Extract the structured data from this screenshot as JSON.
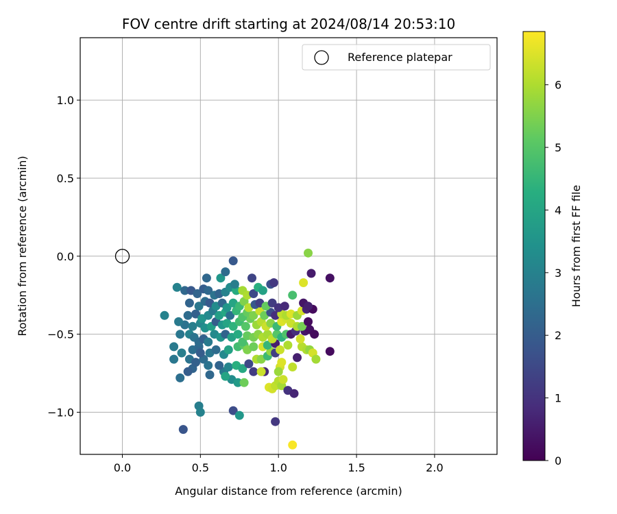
{
  "chart_data": {
    "type": "scatter",
    "title": "FOV centre drift starting at 2024/08/14 20:53:10",
    "xlabel": "Angular distance from reference (arcmin)",
    "ylabel": "Rotation from reference (arcmin)",
    "xlim": [
      -0.27,
      2.4
    ],
    "ylim": [
      -1.27,
      1.4
    ],
    "xticks": [
      0.0,
      0.5,
      1.0,
      1.5,
      2.0
    ],
    "xtick_labels": [
      "0.0",
      "0.5",
      "1.0",
      "1.5",
      "2.0"
    ],
    "yticks": [
      -1.0,
      -0.5,
      0.0,
      0.5,
      1.0
    ],
    "ytick_labels": [
      "−1.0",
      "−0.5",
      "0.0",
      "0.5",
      "1.0"
    ],
    "grid": true,
    "legend": {
      "placement": "top-right",
      "entries": [
        "Reference platepar"
      ]
    },
    "reference_point": {
      "x": 0.0,
      "y": 0.0
    },
    "colorbar": {
      "label": "Hours from first FF file",
      "colormap": "viridis",
      "range": [
        0,
        6.85
      ],
      "ticks": [
        0,
        1,
        2,
        3,
        4,
        5,
        6
      ],
      "tick_labels": [
        "0",
        "1",
        "2",
        "3",
        "4",
        "5",
        "6"
      ]
    },
    "points": [
      [
        1.09,
        -1.21,
        6.8
      ],
      [
        0.39,
        -1.11,
        1.8
      ],
      [
        0.71,
        -0.99,
        1.6
      ],
      [
        0.98,
        -1.06,
        1.1
      ],
      [
        0.75,
        -1.02,
        3.6
      ],
      [
        0.49,
        -0.96,
        2.9
      ],
      [
        0.5,
        -1.0,
        3.0
      ],
      [
        0.37,
        -0.78,
        2.5
      ],
      [
        0.45,
        -0.72,
        2.2
      ],
      [
        0.42,
        -0.74,
        2.0
      ],
      [
        0.56,
        -0.76,
        2.3
      ],
      [
        0.65,
        -0.74,
        2.8
      ],
      [
        0.7,
        -0.79,
        3.3
      ],
      [
        0.74,
        -0.81,
        3.7
      ],
      [
        0.78,
        -0.81,
        5.3
      ],
      [
        0.66,
        -0.77,
        4.0
      ],
      [
        0.84,
        -0.74,
        1.2
      ],
      [
        0.91,
        -0.74,
        0.8
      ],
      [
        0.89,
        -0.74,
        6.3
      ],
      [
        0.94,
        -0.84,
        6.5
      ],
      [
        0.96,
        -0.85,
        6.4
      ],
      [
        0.98,
        -0.83,
        6.2
      ],
      [
        1.0,
        -0.8,
        6.1
      ],
      [
        1.02,
        -0.83,
        5.9
      ],
      [
        1.03,
        -0.79,
        6.3
      ],
      [
        1.06,
        -0.86,
        1.0
      ],
      [
        1.1,
        -0.88,
        0.7
      ],
      [
        1.01,
        -0.71,
        6.4
      ],
      [
        1.0,
        -0.74,
        5.8
      ],
      [
        1.09,
        -0.71,
        6.2
      ],
      [
        1.12,
        -0.65,
        0.6
      ],
      [
        1.02,
        -0.68,
        6.5
      ],
      [
        0.33,
        -0.66,
        2.7
      ],
      [
        0.43,
        -0.66,
        2.6
      ],
      [
        0.47,
        -0.68,
        2.1
      ],
      [
        0.52,
        -0.66,
        2.4
      ],
      [
        0.55,
        -0.7,
        2.6
      ],
      [
        0.62,
        -0.7,
        2.2
      ],
      [
        0.68,
        -0.71,
        3.1
      ],
      [
        0.73,
        -0.7,
        4.3
      ],
      [
        0.77,
        -0.72,
        4.1
      ],
      [
        0.81,
        -0.69,
        1.5
      ],
      [
        0.86,
        -0.66,
        6.0
      ],
      [
        0.89,
        -0.66,
        5.6
      ],
      [
        0.93,
        -0.64,
        4.6
      ],
      [
        0.95,
        -0.61,
        5.7
      ],
      [
        0.98,
        -0.62,
        1.3
      ],
      [
        1.15,
        -0.58,
        6.1
      ],
      [
        1.18,
        -0.6,
        6.0
      ],
      [
        1.2,
        -0.6,
        5.7
      ],
      [
        1.22,
        -0.62,
        6.4
      ],
      [
        1.24,
        -0.66,
        5.9
      ],
      [
        1.33,
        -0.61,
        0.2
      ],
      [
        0.33,
        -0.58,
        2.8
      ],
      [
        0.38,
        -0.62,
        2.9
      ],
      [
        0.45,
        -0.6,
        2.5
      ],
      [
        0.49,
        -0.58,
        2.3
      ],
      [
        0.5,
        -0.62,
        2.0
      ],
      [
        0.56,
        -0.62,
        2.7
      ],
      [
        0.6,
        -0.6,
        2.4
      ],
      [
        0.65,
        -0.63,
        3.2
      ],
      [
        0.68,
        -0.6,
        3.9
      ],
      [
        0.74,
        -0.58,
        4.7
      ],
      [
        0.78,
        -0.57,
        5.1
      ],
      [
        0.8,
        -0.6,
        5.5
      ],
      [
        0.84,
        -0.58,
        5.3
      ],
      [
        0.9,
        -0.58,
        6.4
      ],
      [
        0.93,
        -0.57,
        4.5
      ],
      [
        0.98,
        -0.56,
        0.6
      ],
      [
        1.01,
        -0.6,
        6.3
      ],
      [
        1.06,
        -0.57,
        6.0
      ],
      [
        0.37,
        -0.5,
        2.7
      ],
      [
        0.43,
        -0.5,
        3.0
      ],
      [
        0.46,
        -0.52,
        2.6
      ],
      [
        0.49,
        -0.55,
        2.4
      ],
      [
        0.52,
        -0.53,
        2.1
      ],
      [
        0.55,
        -0.55,
        2.8
      ],
      [
        0.59,
        -0.5,
        3.2
      ],
      [
        0.63,
        -0.52,
        3.5
      ],
      [
        0.66,
        -0.5,
        2.2
      ],
      [
        0.7,
        -0.52,
        3.9
      ],
      [
        0.74,
        -0.5,
        4.2
      ],
      [
        0.77,
        -0.55,
        4.8
      ],
      [
        0.8,
        -0.51,
        5.2
      ],
      [
        0.84,
        -0.52,
        5.4
      ],
      [
        0.87,
        -0.5,
        5.6
      ],
      [
        0.9,
        -0.52,
        6.0
      ],
      [
        0.93,
        -0.5,
        5.9
      ],
      [
        0.96,
        -0.53,
        6.2
      ],
      [
        0.99,
        -0.5,
        5.0
      ],
      [
        1.02,
        -0.52,
        4.4
      ],
      [
        1.05,
        -0.5,
        4.9
      ],
      [
        1.08,
        -0.5,
        0.5
      ],
      [
        1.11,
        -0.48,
        0.9
      ],
      [
        1.14,
        -0.53,
        6.4
      ],
      [
        1.17,
        -0.48,
        0.4
      ],
      [
        1.2,
        -0.47,
        0.3
      ],
      [
        1.23,
        -0.5,
        0.2
      ],
      [
        0.4,
        -0.44,
        2.6
      ],
      [
        0.45,
        -0.45,
        2.9
      ],
      [
        0.5,
        -0.43,
        3.1
      ],
      [
        0.53,
        -0.46,
        3.4
      ],
      [
        0.57,
        -0.45,
        3.8
      ],
      [
        0.6,
        -0.42,
        2.0
      ],
      [
        0.64,
        -0.44,
        3.6
      ],
      [
        0.67,
        -0.43,
        4.0
      ],
      [
        0.71,
        -0.45,
        4.4
      ],
      [
        0.75,
        -0.42,
        4.7
      ],
      [
        0.79,
        -0.45,
        5.0
      ],
      [
        0.82,
        -0.4,
        5.3
      ],
      [
        0.86,
        -0.44,
        5.8
      ],
      [
        0.89,
        -0.42,
        6.1
      ],
      [
        0.92,
        -0.45,
        6.3
      ],
      [
        0.95,
        -0.43,
        5.6
      ],
      [
        0.99,
        -0.45,
        4.6
      ],
      [
        1.02,
        -0.42,
        6.5
      ],
      [
        1.05,
        -0.4,
        6.4
      ],
      [
        1.08,
        -0.43,
        6.3
      ],
      [
        1.12,
        -0.45,
        6.0
      ],
      [
        1.15,
        -0.45,
        5.4
      ],
      [
        1.19,
        -0.42,
        0.2
      ],
      [
        0.27,
        -0.38,
        3.0
      ],
      [
        0.36,
        -0.42,
        2.8
      ],
      [
        0.42,
        -0.38,
        2.4
      ],
      [
        0.47,
        -0.37,
        2.1
      ],
      [
        0.51,
        -0.4,
        3.5
      ],
      [
        0.55,
        -0.38,
        3.2
      ],
      [
        0.58,
        -0.35,
        2.8
      ],
      [
        0.62,
        -0.38,
        3.8
      ],
      [
        0.66,
        -0.36,
        4.1
      ],
      [
        0.69,
        -0.38,
        2.5
      ],
      [
        0.73,
        -0.35,
        4.5
      ],
      [
        0.77,
        -0.39,
        4.9
      ],
      [
        0.8,
        -0.36,
        5.2
      ],
      [
        0.84,
        -0.38,
        5.5
      ],
      [
        0.88,
        -0.35,
        6.3
      ],
      [
        0.91,
        -0.38,
        5.3
      ],
      [
        0.95,
        -0.36,
        1.6
      ],
      [
        0.98,
        -0.38,
        0.9
      ],
      [
        1.02,
        -0.37,
        6.2
      ],
      [
        1.05,
        -0.38,
        6.0
      ],
      [
        1.08,
        -0.37,
        6.5
      ],
      [
        1.12,
        -0.38,
        5.8
      ],
      [
        1.15,
        -0.35,
        6.4
      ],
      [
        1.18,
        -0.34,
        0.7
      ],
      [
        1.22,
        -0.34,
        0.2
      ],
      [
        0.43,
        -0.3,
        2.2
      ],
      [
        0.49,
        -0.32,
        2.7
      ],
      [
        0.53,
        -0.29,
        2.4
      ],
      [
        0.56,
        -0.3,
        1.9
      ],
      [
        0.6,
        -0.32,
        3.3
      ],
      [
        0.64,
        -0.3,
        2.3
      ],
      [
        0.67,
        -0.33,
        3.6
      ],
      [
        0.71,
        -0.3,
        4.0
      ],
      [
        0.75,
        -0.32,
        4.6
      ],
      [
        0.78,
        -0.29,
        5.5
      ],
      [
        0.81,
        -0.33,
        6.1
      ],
      [
        0.85,
        -0.31,
        1.9
      ],
      [
        0.88,
        -0.3,
        1.3
      ],
      [
        0.92,
        -0.32,
        5.2
      ],
      [
        0.96,
        -0.3,
        1.2
      ],
      [
        1.0,
        -0.33,
        1.0
      ],
      [
        1.04,
        -0.32,
        0.8
      ],
      [
        1.16,
        -0.3,
        0.4
      ],
      [
        1.19,
        -0.32,
        0.6
      ],
      [
        0.35,
        -0.2,
        3.0
      ],
      [
        0.4,
        -0.22,
        2.3
      ],
      [
        0.44,
        -0.22,
        1.9
      ],
      [
        0.48,
        -0.24,
        2.2
      ],
      [
        0.52,
        -0.21,
        2.0
      ],
      [
        0.55,
        -0.22,
        2.3
      ],
      [
        0.59,
        -0.25,
        2.6
      ],
      [
        0.62,
        -0.24,
        2.2
      ],
      [
        0.66,
        -0.23,
        3.0
      ],
      [
        0.69,
        -0.2,
        3.3
      ],
      [
        0.73,
        -0.22,
        4.2
      ],
      [
        0.77,
        -0.22,
        5.9
      ],
      [
        0.8,
        -0.25,
        6.0
      ],
      [
        0.84,
        -0.24,
        1.5
      ],
      [
        0.87,
        -0.2,
        4.3
      ],
      [
        0.9,
        -0.22,
        3.9
      ],
      [
        0.95,
        -0.18,
        1.7
      ],
      [
        1.09,
        -0.25,
        4.8
      ],
      [
        0.54,
        -0.14,
        2.3
      ],
      [
        0.63,
        -0.14,
        3.6
      ],
      [
        0.66,
        -0.1,
        2.4
      ],
      [
        0.72,
        -0.18,
        2.9
      ],
      [
        0.83,
        -0.14,
        1.4
      ],
      [
        0.97,
        -0.17,
        1.1
      ],
      [
        1.16,
        -0.17,
        6.5
      ],
      [
        1.21,
        -0.11,
        0.5
      ],
      [
        1.33,
        -0.14,
        0.3
      ],
      [
        0.71,
        -0.03,
        1.9
      ],
      [
        1.19,
        0.02,
        5.6
      ]
    ]
  }
}
